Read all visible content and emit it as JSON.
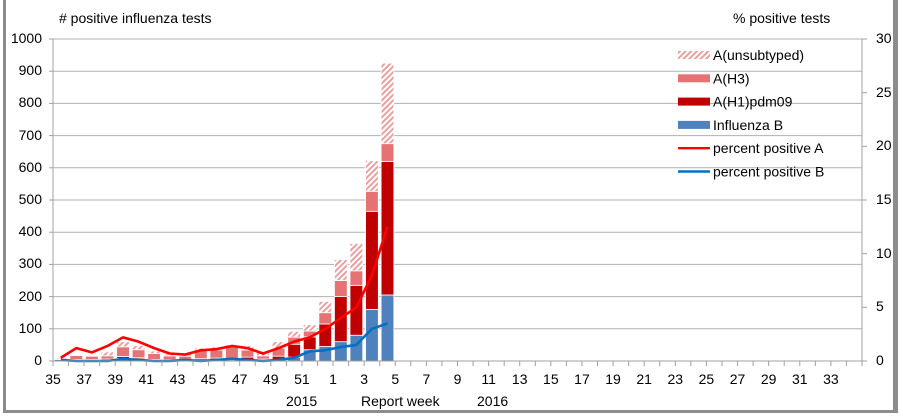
{
  "chart_data": {
    "type": "bar",
    "subtype": "stacked bar with dual-axis lines",
    "title": "",
    "ylabel": "# positive influenza tests",
    "y2label": "% positive tests",
    "xlabel": "Report week",
    "year_labels": [
      "2015",
      "2016"
    ],
    "ylim": [
      0,
      1000
    ],
    "y_ticks": [
      0,
      100,
      200,
      300,
      400,
      500,
      600,
      700,
      800,
      900,
      1000
    ],
    "y2lim": [
      0,
      30
    ],
    "y2_ticks": [
      0,
      5,
      10,
      15,
      20,
      25,
      30
    ],
    "x_tick_labels": [
      "35",
      "37",
      "39",
      "41",
      "43",
      "45",
      "47",
      "49",
      "51",
      "1",
      "3",
      "5",
      "7",
      "9",
      "11",
      "13",
      "15",
      "17",
      "19",
      "21",
      "23",
      "25",
      "27",
      "29",
      "31",
      "33"
    ],
    "weeks": [
      "35",
      "36",
      "37",
      "38",
      "39",
      "40",
      "41",
      "42",
      "43",
      "44",
      "45",
      "46",
      "47",
      "48",
      "49",
      "50",
      "51",
      "52",
      "1",
      "2",
      "3",
      "4"
    ],
    "grid": true,
    "legend_position": "top-right inside",
    "series": [
      {
        "name": "Influenza B",
        "kind": "bar",
        "color": "#4f81bd",
        "values": [
          5,
          2,
          2,
          2,
          8,
          6,
          2,
          2,
          3,
          2,
          4,
          3,
          4,
          3,
          5,
          12,
          35,
          45,
          60,
          80,
          160,
          205
        ]
      },
      {
        "name": "A(H1)pdm09",
        "kind": "bar",
        "color": "#c00000",
        "values": [
          2,
          3,
          3,
          4,
          6,
          4,
          3,
          2,
          2,
          5,
          5,
          4,
          8,
          3,
          10,
          40,
          40,
          70,
          140,
          155,
          305,
          415
        ]
      },
      {
        "name": "A(H3)",
        "kind": "bar",
        "color": "#e57373",
        "values": [
          3,
          12,
          10,
          10,
          30,
          25,
          18,
          12,
          10,
          28,
          25,
          38,
          22,
          10,
          25,
          22,
          18,
          35,
          50,
          45,
          62,
          55
        ]
      },
      {
        "name": "A(unsubtyped)",
        "kind": "bar-hatched",
        "color": "#e8a0a0",
        "values": [
          0,
          3,
          2,
          12,
          16,
          13,
          8,
          6,
          6,
          5,
          10,
          5,
          14,
          10,
          20,
          18,
          20,
          35,
          65,
          85,
          95,
          250
        ]
      },
      {
        "name": "percent positive A",
        "kind": "line",
        "axis": "right",
        "color": "#ff0000",
        "values": [
          0.3,
          1.2,
          0.8,
          1.4,
          2.2,
          1.8,
          1.2,
          0.7,
          0.6,
          1.0,
          1.1,
          1.4,
          1.2,
          0.7,
          1.2,
          1.8,
          2.2,
          3.0,
          4.0,
          5.0,
          8.0,
          12.5
        ]
      },
      {
        "name": "percent positive B",
        "kind": "line",
        "axis": "right",
        "color": "#0070c0",
        "values": [
          0.1,
          0.0,
          0.0,
          0.0,
          0.2,
          0.1,
          0.0,
          0.0,
          0.1,
          0.0,
          0.1,
          0.2,
          0.1,
          0.0,
          0.1,
          0.3,
          0.9,
          1.0,
          1.3,
          1.5,
          3.0,
          3.5
        ]
      }
    ]
  },
  "legend": [
    {
      "label": "A(unsubtyped)",
      "swatch": "hatched",
      "color": "#e8a0a0"
    },
    {
      "label": "A(H3)",
      "swatch": "bar",
      "color": "#e57373"
    },
    {
      "label": "A(H1)pdm09",
      "swatch": "bar",
      "color": "#c00000"
    },
    {
      "label": "Influenza B",
      "swatch": "bar",
      "color": "#4f81bd"
    },
    {
      "label": "percent positive A",
      "swatch": "line",
      "color": "#ff0000"
    },
    {
      "label": "percent positive B",
      "swatch": "line",
      "color": "#0070c0"
    }
  ]
}
